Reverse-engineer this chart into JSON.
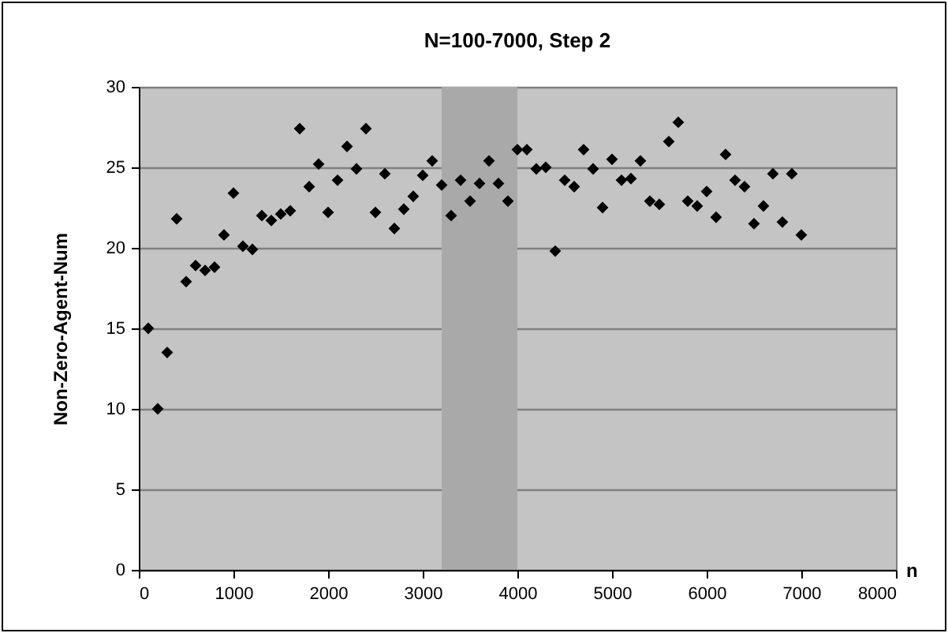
{
  "chart_data": {
    "type": "scatter",
    "title": "N=100-7000, Step 2",
    "xlabel": "n",
    "ylabel": "Non-Zero-Agent-Num",
    "x": [
      100,
      200,
      300,
      400,
      500,
      600,
      700,
      800,
      900,
      1000,
      1100,
      1200,
      1300,
      1400,
      1500,
      1600,
      1700,
      1800,
      1900,
      2000,
      2100,
      2200,
      2300,
      2400,
      2500,
      2600,
      2700,
      2800,
      2900,
      3000,
      3100,
      3200,
      3300,
      3400,
      3500,
      3600,
      3700,
      3800,
      3900,
      4000,
      4100,
      4200,
      4300,
      4400,
      4500,
      4600,
      4700,
      4800,
      4900,
      5000,
      5100,
      5200,
      5300,
      5400,
      5500,
      5600,
      5700,
      5800,
      5900,
      6000,
      6100,
      6200,
      6300,
      6400,
      6500,
      6600,
      6700,
      6800,
      6900,
      7000
    ],
    "series": [
      {
        "color": "#000000",
        "values": [
          15,
          10,
          13.5,
          21.8,
          17.9,
          18.9,
          18.6,
          18.8,
          20.8,
          23.4,
          20.1,
          19.9,
          22.0,
          21.7,
          22.1,
          22.3,
          27.4,
          23.8,
          25.2,
          22.2,
          24.2,
          26.3,
          24.9,
          27.4,
          22.2,
          24.6,
          21.2,
          22.4,
          23.2,
          24.5,
          25.4,
          23.9,
          22.0,
          24.2,
          22.9,
          24.0,
          25.4,
          24.0,
          22.9,
          26.1,
          26.1,
          24.9,
          25.0,
          19.8,
          24.2,
          23.8,
          26.1,
          24.9,
          22.5,
          25.5,
          24.2,
          24.3,
          25.4,
          22.9,
          22.7,
          26.6,
          27.8,
          22.9,
          22.6,
          23.5,
          21.9,
          25.8,
          24.2,
          23.8,
          21.5,
          22.6,
          24.6,
          21.6,
          24.6,
          20.8
        ]
      }
    ],
    "xlim": [
      0,
      8000
    ],
    "xticks": [
      0,
      1000,
      2000,
      3000,
      4000,
      5000,
      6000,
      7000,
      8000
    ],
    "ylim": [
      0,
      30
    ],
    "yticks": [
      0,
      5,
      10,
      15,
      20,
      25,
      30
    ],
    "bands": [
      {
        "axis": "x",
        "from": 3200,
        "to": 4000,
        "color": "#a9a9a9"
      }
    ],
    "grid": "y",
    "marker": "diamond"
  }
}
